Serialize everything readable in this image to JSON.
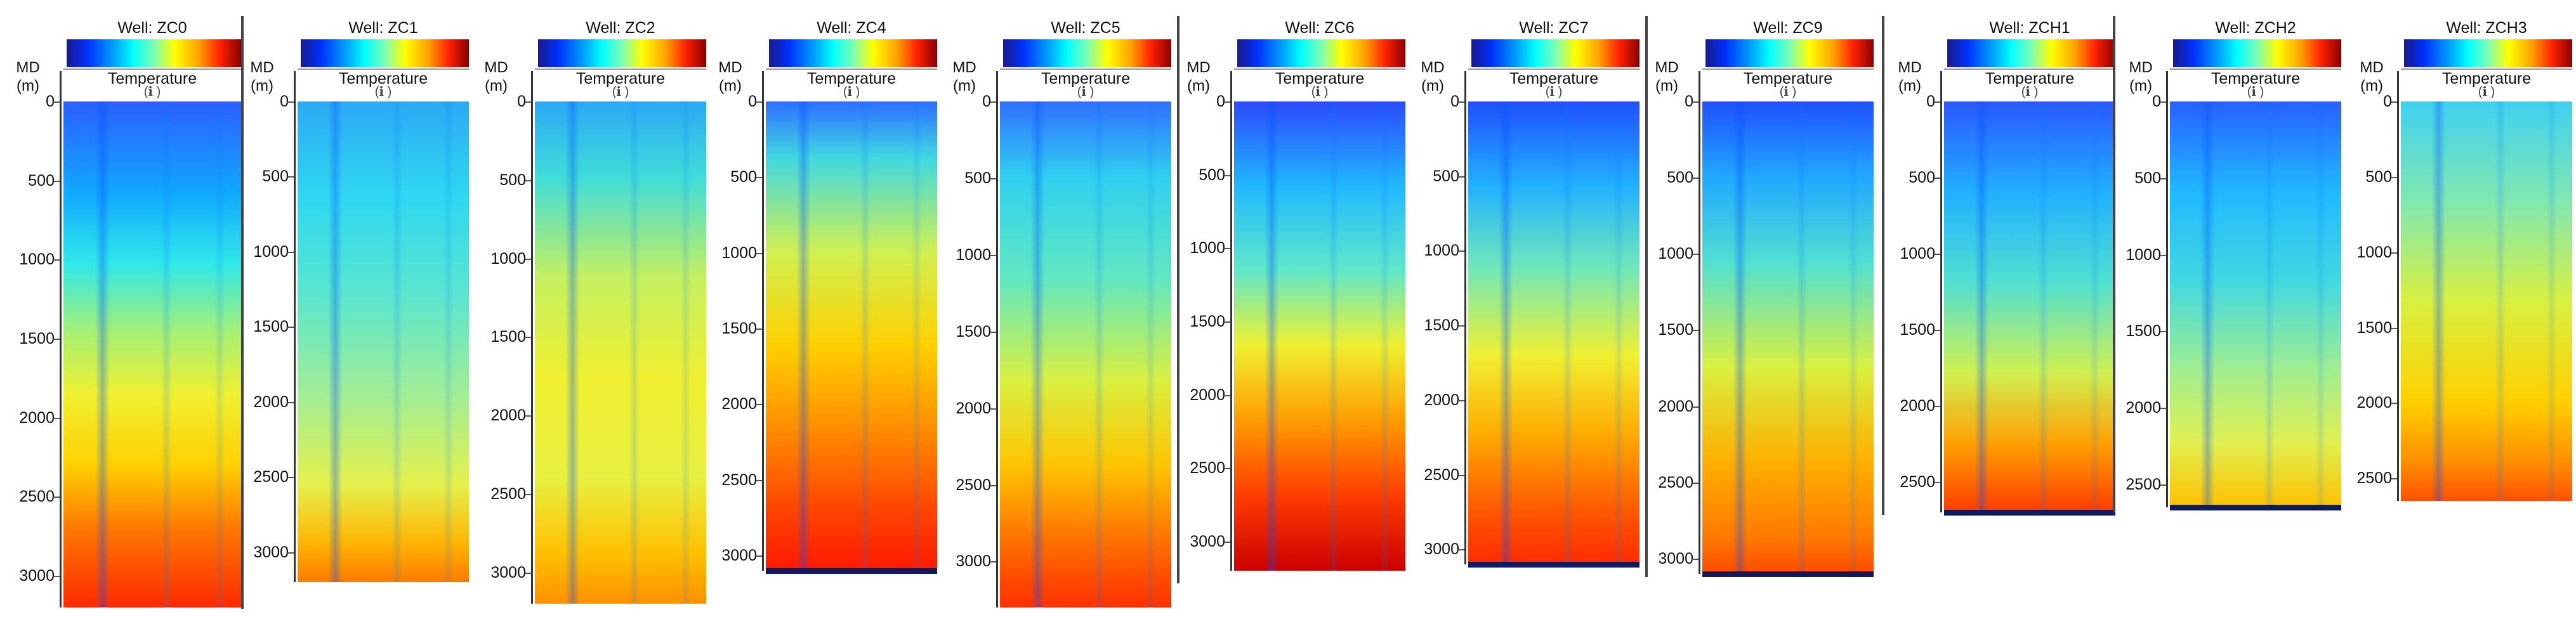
{
  "colors": {
    "colorbar": [
      "#1a1a8c",
      "#0030ff",
      "#00a8ff",
      "#00ffff",
      "#7dffb4",
      "#ffff00",
      "#ffa000",
      "#ff2000",
      "#8b0000"
    ]
  },
  "axis_label": "MD\n(m)",
  "temperature_label": "Temperature",
  "temperature_unit": "(ℹ )",
  "chart_data": [
    {
      "type": "heatmap",
      "title": "Well: ZC0",
      "ylabel": "MD (m)",
      "ylim": [
        0,
        3200
      ],
      "y_ticks": [
        0,
        500,
        1000,
        1500,
        2000,
        2500,
        3000
      ],
      "legend": "Temperature"
    },
    {
      "type": "heatmap",
      "title": "Well: ZC1",
      "ylabel": "MD (m)",
      "ylim": [
        0,
        3200
      ],
      "y_ticks": [
        0,
        500,
        1000,
        1500,
        2000,
        2500,
        3000
      ],
      "legend": "Temperature"
    },
    {
      "type": "heatmap",
      "title": "Well: ZC2",
      "ylabel": "MD (m)",
      "ylim": [
        0,
        3200
      ],
      "y_ticks": [
        0,
        500,
        1000,
        1500,
        2000,
        2500,
        3000
      ],
      "legend": "Temperature"
    },
    {
      "type": "heatmap",
      "title": "Well: ZC4",
      "ylabel": "MD (m)",
      "ylim": [
        0,
        3100
      ],
      "y_ticks": [
        0,
        500,
        1000,
        1500,
        2000,
        2500,
        3000
      ],
      "legend": "Temperature"
    },
    {
      "type": "heatmap",
      "title": "Well: ZC5",
      "ylabel": "MD (m)",
      "ylim": [
        0,
        3300
      ],
      "y_ticks": [
        0,
        500,
        1000,
        1500,
        2000,
        2500,
        3000
      ],
      "legend": "Temperature"
    },
    {
      "type": "heatmap",
      "title": "Well: ZC6",
      "ylabel": "MD (m)",
      "ylim": [
        0,
        3200
      ],
      "y_ticks": [
        0,
        500,
        1000,
        1500,
        2000,
        2500,
        3000
      ],
      "legend": "Temperature"
    },
    {
      "type": "heatmap",
      "title": "Well: ZC7",
      "ylabel": "MD (m)",
      "ylim": [
        0,
        3100
      ],
      "y_ticks": [
        0,
        500,
        1000,
        1500,
        2000,
        2500,
        3000
      ],
      "legend": "Temperature"
    },
    {
      "type": "heatmap",
      "title": "Well: ZC9",
      "ylabel": "MD (m)",
      "ylim": [
        0,
        3100
      ],
      "y_ticks": [
        0,
        500,
        1000,
        1500,
        2000,
        2500,
        3000
      ],
      "legend": "Temperature"
    },
    {
      "type": "heatmap",
      "title": "Well: ZCH1",
      "ylabel": "MD (m)",
      "ylim": [
        0,
        2700
      ],
      "y_ticks": [
        0,
        500,
        1000,
        1500,
        2000,
        2500
      ],
      "legend": "Temperature"
    },
    {
      "type": "heatmap",
      "title": "Well: ZCH2",
      "ylabel": "MD (m)",
      "ylim": [
        0,
        2650
      ],
      "y_ticks": [
        0,
        500,
        1000,
        1500,
        2000,
        2500
      ],
      "legend": "Temperature"
    },
    {
      "type": "heatmap",
      "title": "Well: ZCH3",
      "ylabel": "MD (m)",
      "ylim": [
        0,
        2650
      ],
      "y_ticks": [
        0,
        500,
        1000,
        1500,
        2000,
        2500
      ],
      "legend": "Temperature"
    }
  ]
}
